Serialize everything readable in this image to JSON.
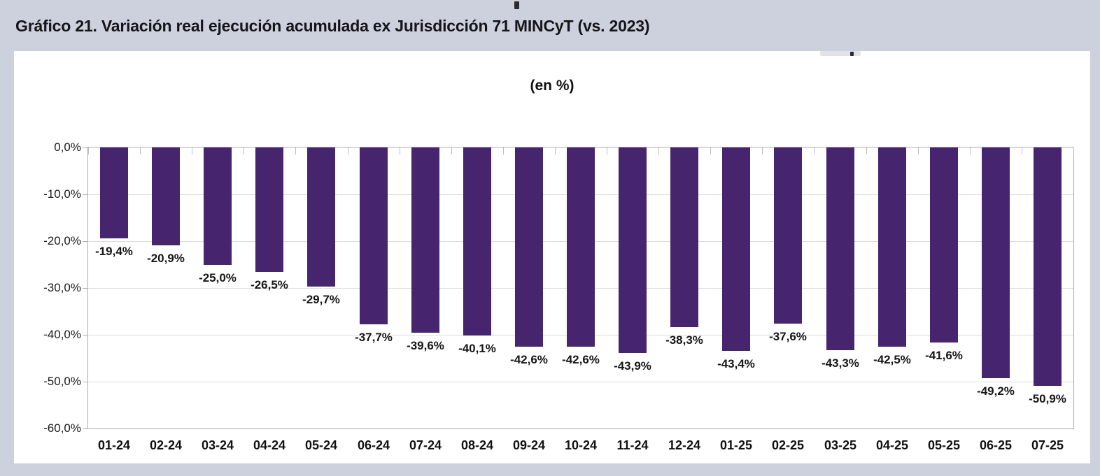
{
  "page": {
    "background_color": "#CDD1DE",
    "panel_color": "#FFFFFF"
  },
  "header": {
    "title": "Gráfico 21. Variación real ejecución acumulada ex Jurisdicción 71 MINCyT (vs. 2023)"
  },
  "chart_data": {
    "type": "bar",
    "title": "(en %)",
    "orientation": "vertical",
    "categories": [
      "01-24",
      "02-24",
      "03-24",
      "04-24",
      "05-24",
      "06-24",
      "07-24",
      "08-24",
      "09-24",
      "10-24",
      "11-24",
      "12-24",
      "01-25",
      "02-25",
      "03-25",
      "04-25",
      "05-25",
      "06-25",
      "07-25"
    ],
    "values": [
      -19.4,
      -20.9,
      -25.0,
      -26.5,
      -29.7,
      -37.7,
      -39.6,
      -40.1,
      -42.6,
      -42.6,
      -43.9,
      -38.3,
      -43.4,
      -37.6,
      -43.3,
      -42.5,
      -41.6,
      -49.2,
      -50.9
    ],
    "data_labels": [
      "-19,4%",
      "-20,9%",
      "-25,0%",
      "-26,5%",
      "-29,7%",
      "-37,7%",
      "-39,6%",
      "-40,1%",
      "-42,6%",
      "-42,6%",
      "-43,9%",
      "-38,3%",
      "-43,4%",
      "-37,6%",
      "-43,3%",
      "-42,5%",
      "-41,6%",
      "-49,2%",
      "-50,9%"
    ],
    "y_tick_labels": [
      "0,0%",
      "-10,0%",
      "-20,0%",
      "-30,0%",
      "-40,0%",
      "-50,0%",
      "-60,0%"
    ],
    "ylim": [
      -60,
      0
    ],
    "y_step": 10,
    "grid": true,
    "legend": "none",
    "bar_color": "#46246E",
    "gridline_color": "#DCDCDC",
    "axis_color": "#ACACAC",
    "label_color": "#161616"
  }
}
